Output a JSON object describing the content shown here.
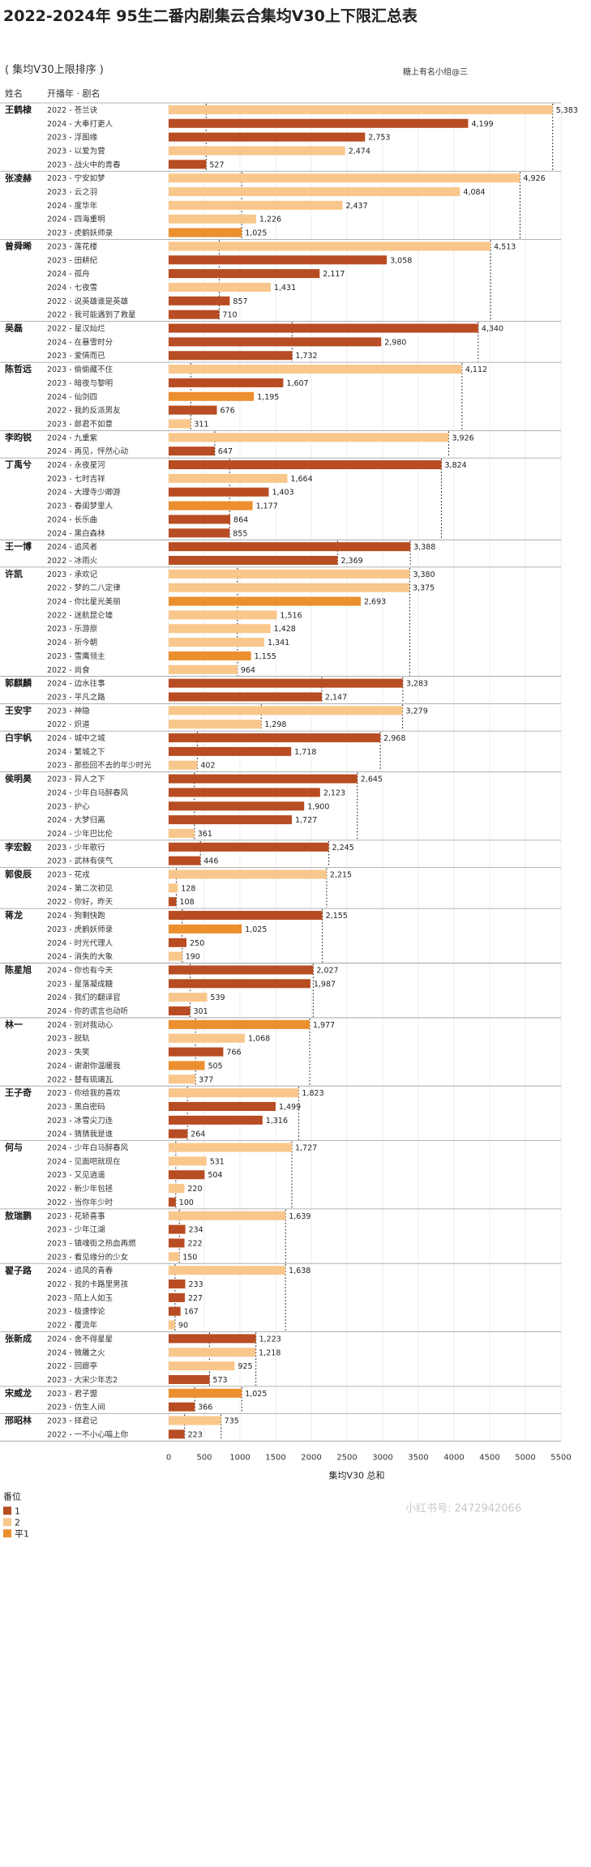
{
  "chart_data": {
    "type": "bar",
    "orientation": "horizontal",
    "title": "2022-2024年 95生二番内剧集云合集均V30上下限汇总表",
    "subtitle": "( 集均V30上限排序 )",
    "credit": "糖上有名小组@三",
    "column_headers": {
      "name": "姓名",
      "year_drama": "开播年 · 剧名"
    },
    "xlabel": "集均V30 总和",
    "xlim": [
      0,
      5500
    ],
    "xticks": [
      0,
      500,
      1000,
      1500,
      2000,
      2500,
      3000,
      3500,
      4000,
      4500,
      5000,
      5500
    ],
    "legend": {
      "title": "番位",
      "entries": [
        {
          "key": "1",
          "label": "1",
          "color": "#b84c22"
        },
        {
          "key": "2",
          "label": "2",
          "color": "#f9c78b"
        },
        {
          "key": "p1",
          "label": "平1",
          "color": "#ec8f2e"
        }
      ]
    },
    "watermark": "小红书号: 2472942066",
    "actors": [
      {
        "name": "王鹤棣",
        "dramas": [
          {
            "label": "2022 - 苍兰诀",
            "value": 5383,
            "rank": "2"
          },
          {
            "label": "2024 - 大奉打更人",
            "value": 4199,
            "rank": "1"
          },
          {
            "label": "2023 - 浮图缘",
            "value": 2753,
            "rank": "1"
          },
          {
            "label": "2023 - 以爱为营",
            "value": 2474,
            "rank": "2"
          },
          {
            "label": "2023 - 战火中的青春",
            "value": 527,
            "rank": "1"
          }
        ]
      },
      {
        "name": "张凌赫",
        "dramas": [
          {
            "label": "2023 - 宁安如梦",
            "value": 4926,
            "rank": "2"
          },
          {
            "label": "2023 - 云之羽",
            "value": 4084,
            "rank": "2"
          },
          {
            "label": "2024 - 度华年",
            "value": 2437,
            "rank": "2"
          },
          {
            "label": "2024 - 四海重明",
            "value": 1226,
            "rank": "2"
          },
          {
            "label": "2023 - 虎鹤妖师录",
            "value": 1025,
            "rank": "p1"
          }
        ]
      },
      {
        "name": "曾舜晞",
        "dramas": [
          {
            "label": "2023 - 莲花楼",
            "value": 4513,
            "rank": "2"
          },
          {
            "label": "2023 - 田耕纪",
            "value": 3058,
            "rank": "1"
          },
          {
            "label": "2024 - 孤舟",
            "value": 2117,
            "rank": "1"
          },
          {
            "label": "2024 - 七夜雪",
            "value": 1431,
            "rank": "2"
          },
          {
            "label": "2022 - 说英雄谁是英雄",
            "value": 857,
            "rank": "1"
          },
          {
            "label": "2022 - 我可能遇到了救星",
            "value": 710,
            "rank": "1"
          }
        ]
      },
      {
        "name": "吴磊",
        "dramas": [
          {
            "label": "2022 - 星汉灿烂",
            "value": 4340,
            "rank": "1"
          },
          {
            "label": "2024 - 在暴雪时分",
            "value": 2980,
            "rank": "1"
          },
          {
            "label": "2023 - 爱情而已",
            "value": 1732,
            "rank": "1"
          }
        ]
      },
      {
        "name": "陈哲远",
        "dramas": [
          {
            "label": "2023 - 偷偷藏不住",
            "value": 4112,
            "rank": "2"
          },
          {
            "label": "2023 - 暗夜与黎明",
            "value": 1607,
            "rank": "1"
          },
          {
            "label": "2024 - 仙剑四",
            "value": 1195,
            "rank": "p1"
          },
          {
            "label": "2022 - 我的反派男友",
            "value": 676,
            "rank": "1"
          },
          {
            "label": "2023 - 郎君不如意",
            "value": 311,
            "rank": "2"
          }
        ]
      },
      {
        "name": "李昀锐",
        "dramas": [
          {
            "label": "2024 - 九重紫",
            "value": 3926,
            "rank": "2"
          },
          {
            "label": "2024 - 再见，怦然心动",
            "value": 647,
            "rank": "1"
          }
        ]
      },
      {
        "name": "丁禹兮",
        "dramas": [
          {
            "label": "2024 - 永夜星河",
            "value": 3824,
            "rank": "1"
          },
          {
            "label": "2023 - 七时吉祥",
            "value": 1664,
            "rank": "2"
          },
          {
            "label": "2024 - 大理寺少卿游",
            "value": 1403,
            "rank": "1"
          },
          {
            "label": "2023 - 春闺梦里人",
            "value": 1177,
            "rank": "p1"
          },
          {
            "label": "2024 - 长乐曲",
            "value": 864,
            "rank": "1"
          },
          {
            "label": "2024 - 黑白森林",
            "value": 855,
            "rank": "1"
          }
        ]
      },
      {
        "name": "王一博",
        "dramas": [
          {
            "label": "2024 - 追风者",
            "value": 3388,
            "rank": "1"
          },
          {
            "label": "2022 - 冰雨火",
            "value": 2369,
            "rank": "1"
          }
        ]
      },
      {
        "name": "许凯",
        "dramas": [
          {
            "label": "2023 - 承欢记",
            "value": 3380,
            "rank": "2"
          },
          {
            "label": "2022 - 梦的二八定律",
            "value": 3375,
            "rank": "2"
          },
          {
            "label": "2024 - 你比星光美丽",
            "value": 2693,
            "rank": "p1"
          },
          {
            "label": "2022 - 迷航昆仑墟",
            "value": 1516,
            "rank": "2"
          },
          {
            "label": "2023 - 乐游原",
            "value": 1428,
            "rank": "2"
          },
          {
            "label": "2024 - 祈今朝",
            "value": 1341,
            "rank": "2"
          },
          {
            "label": "2023 - 雪鹰领主",
            "value": 1155,
            "rank": "p1"
          },
          {
            "label": "2022 - 尚食",
            "value": 964,
            "rank": "2"
          }
        ]
      },
      {
        "name": "郭麒麟",
        "dramas": [
          {
            "label": "2024 - 边水往事",
            "value": 3283,
            "rank": "1"
          },
          {
            "label": "2023 - 平凡之路",
            "value": 2147,
            "rank": "1"
          }
        ]
      },
      {
        "name": "王安宇",
        "dramas": [
          {
            "label": "2023 - 神隐",
            "value": 3279,
            "rank": "2"
          },
          {
            "label": "2022 - 炽道",
            "value": 1298,
            "rank": "2"
          }
        ]
      },
      {
        "name": "白宇帆",
        "dramas": [
          {
            "label": "2024 - 城中之城",
            "value": 2968,
            "rank": "1"
          },
          {
            "label": "2024 - 繁城之下",
            "value": 1718,
            "rank": "1"
          },
          {
            "label": "2023 - 那些回不去的年少时光",
            "value": 402,
            "rank": "2"
          }
        ]
      },
      {
        "name": "侯明昊",
        "dramas": [
          {
            "label": "2023 - 异人之下",
            "value": 2645,
            "rank": "1"
          },
          {
            "label": "2024 - 少年白马醉春风",
            "value": 2123,
            "rank": "1"
          },
          {
            "label": "2023 - 护心",
            "value": 1900,
            "rank": "1"
          },
          {
            "label": "2024 - 大梦归离",
            "value": 1727,
            "rank": "1"
          },
          {
            "label": "2024 - 少年巴比伦",
            "value": 361,
            "rank": "2"
          }
        ]
      },
      {
        "name": "李宏毅",
        "dramas": [
          {
            "label": "2023 - 少年歌行",
            "value": 2245,
            "rank": "1"
          },
          {
            "label": "2023 - 武林有侠气",
            "value": 446,
            "rank": "1"
          }
        ]
      },
      {
        "name": "郭俊辰",
        "dramas": [
          {
            "label": "2023 - 花戎",
            "value": 2215,
            "rank": "2"
          },
          {
            "label": "2024 - 第二次初见",
            "value": 128,
            "rank": "2"
          },
          {
            "label": "2022 - 你好，昨天",
            "value": 108,
            "rank": "1"
          }
        ]
      },
      {
        "name": "蒋龙",
        "dramas": [
          {
            "label": "2024 - 狗剩快跑",
            "value": 2155,
            "rank": "1"
          },
          {
            "label": "2023 - 虎鹤妖师录",
            "value": 1025,
            "rank": "p1"
          },
          {
            "label": "2024 - 时光代理人",
            "value": 250,
            "rank": "1"
          },
          {
            "label": "2024 - 消失的大象",
            "value": 190,
            "rank": "2"
          }
        ]
      },
      {
        "name": "陈星旭",
        "dramas": [
          {
            "label": "2024 - 你也有今天",
            "value": 2027,
            "rank": "1"
          },
          {
            "label": "2023 - 星落凝成糖",
            "value": 1987,
            "rank": "1"
          },
          {
            "label": "2024 - 我们的翻译官",
            "value": 539,
            "rank": "2"
          },
          {
            "label": "2024 - 你的谎言也动听",
            "value": 301,
            "rank": "1"
          }
        ]
      },
      {
        "name": "林一",
        "dramas": [
          {
            "label": "2024 - 别对我动心",
            "value": 1977,
            "rank": "p1"
          },
          {
            "label": "2023 - 脱轨",
            "value": 1068,
            "rank": "2"
          },
          {
            "label": "2023 - 失笑",
            "value": 766,
            "rank": "1"
          },
          {
            "label": "2024 - 谢谢你温暖我",
            "value": 505,
            "rank": "p1"
          },
          {
            "label": "2022 - 替有琉璃瓦",
            "value": 377,
            "rank": "2"
          }
        ]
      },
      {
        "name": "王子奇",
        "dramas": [
          {
            "label": "2023 - 你给我的喜欢",
            "value": 1823,
            "rank": "2"
          },
          {
            "label": "2023 - 黑白密码",
            "value": 1499,
            "rank": "1"
          },
          {
            "label": "2023 - 冰雪尖刀连",
            "value": 1316,
            "rank": "1"
          },
          {
            "label": "2024 - 猜猜我是谁",
            "value": 264,
            "rank": "1"
          }
        ]
      },
      {
        "name": "何与",
        "dramas": [
          {
            "label": "2024 - 少年白马醉春风",
            "value": 1727,
            "rank": "2"
          },
          {
            "label": "2024 - 见面吧就现在",
            "value": 531,
            "rank": "2"
          },
          {
            "label": "2023 - 又见逍遥",
            "value": 504,
            "rank": "1"
          },
          {
            "label": "2022 - 新少年包拯",
            "value": 220,
            "rank": "2"
          },
          {
            "label": "2022 - 当你年少时",
            "value": 100,
            "rank": "1"
          }
        ]
      },
      {
        "name": "敖瑞鹏",
        "dramas": [
          {
            "label": "2023 - 花轿喜事",
            "value": 1639,
            "rank": "2"
          },
          {
            "label": "2023 - 少年江湖",
            "value": 234,
            "rank": "1"
          },
          {
            "label": "2023 - 镇魂街之热血再燃",
            "value": 222,
            "rank": "1"
          },
          {
            "label": "2023 - 看见缘分的少女",
            "value": 150,
            "rank": "2"
          }
        ]
      },
      {
        "name": "翟子路",
        "dramas": [
          {
            "label": "2024 - 追风的青春",
            "value": 1638,
            "rank": "2"
          },
          {
            "label": "2022 - 我的卡路里男孩",
            "value": 233,
            "rank": "1"
          },
          {
            "label": "2023 - 陌上人如玉",
            "value": 227,
            "rank": "1"
          },
          {
            "label": "2023 - 极速悖论",
            "value": 167,
            "rank": "1"
          },
          {
            "label": "2022 - 覆流年",
            "value": 90,
            "rank": "2"
          }
        ]
      },
      {
        "name": "张新成",
        "dramas": [
          {
            "label": "2024 - 舍不得星星",
            "value": 1223,
            "rank": "1"
          },
          {
            "label": "2024 - 微雕之火",
            "value": 1218,
            "rank": "2"
          },
          {
            "label": "2022 - 回廊亭",
            "value": 925,
            "rank": "2"
          },
          {
            "label": "2023 - 大宋少年志2",
            "value": 573,
            "rank": "1"
          }
        ]
      },
      {
        "name": "宋威龙",
        "dramas": [
          {
            "label": "2023 - 君子盟",
            "value": 1025,
            "rank": "p1"
          },
          {
            "label": "2023 - 仿生人间",
            "value": 366,
            "rank": "1"
          }
        ]
      },
      {
        "name": "邢昭林",
        "dramas": [
          {
            "label": "2023 - 择君记",
            "value": 735,
            "rank": "2"
          },
          {
            "label": "2022 - 一不小心喵上你",
            "value": 223,
            "rank": "1"
          }
        ]
      }
    ]
  }
}
